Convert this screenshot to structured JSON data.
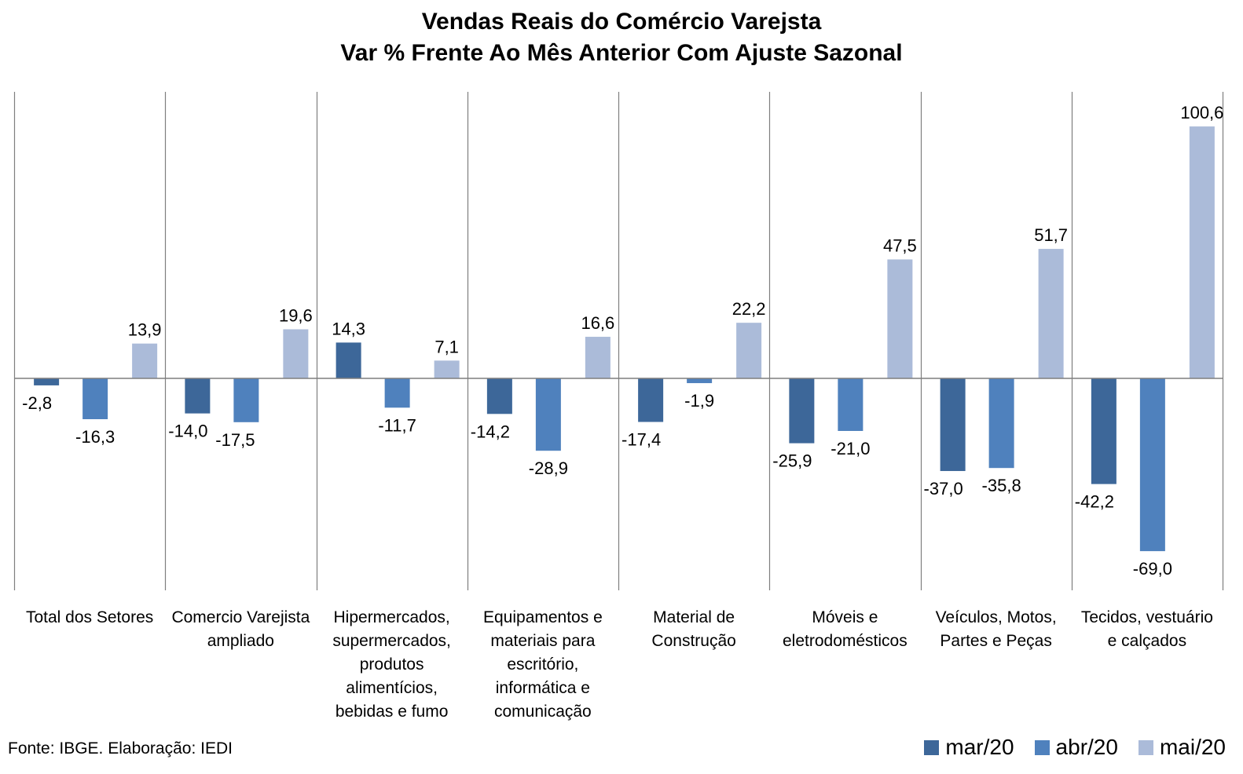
{
  "title_lines": [
    "Vendas Reais do Comércio Varejsta",
    "Var % Frente Ao Mês Anterior Com Ajuste Sazonal"
  ],
  "source": "Fonte: IBGE. Elaboração: IEDI",
  "chart_data": {
    "type": "bar",
    "title": "Vendas Reais do Comércio Varejsta - Var % Frente Ao Mês Anterior Com Ajuste Sazonal",
    "categories": [
      [
        "Total dos Setores"
      ],
      [
        "Comercio Varejista",
        "ampliado"
      ],
      [
        "Hipermercados,",
        "supermercados,",
        "produtos",
        "alimentícios,",
        "bebidas e fumo"
      ],
      [
        "Equipamentos e",
        "materiais para",
        "escritório,",
        "informática e",
        "comunicação"
      ],
      [
        "Material de",
        "Construção"
      ],
      [
        "Móveis e",
        "eletrodomésticos"
      ],
      [
        "Veículos, Motos,",
        "Partes e Peças"
      ],
      [
        "Tecidos, vestuário",
        "e calçados"
      ]
    ],
    "series": [
      {
        "name": "mar/20",
        "color": "#3d6799",
        "values": [
          -2.8,
          -14.0,
          14.3,
          -14.2,
          -17.4,
          -25.9,
          -37.0,
          -42.2
        ],
        "labels": [
          "-2,8",
          "-14,0",
          "14,3",
          "-14,2",
          "-17,4",
          "-25,9",
          "-37,0",
          "-42,2"
        ]
      },
      {
        "name": "abr/20",
        "color": "#4f81bd",
        "values": [
          -16.3,
          -17.5,
          -11.7,
          -28.9,
          -1.9,
          -21.0,
          -35.8,
          -69.0
        ],
        "labels": [
          "-16,3",
          "-17,5",
          "-11,7",
          "-28,9",
          "-1,9",
          "-21,0",
          "-35,8",
          "-69,0"
        ]
      },
      {
        "name": "mai/20",
        "color": "#abbbd9",
        "values": [
          13.9,
          19.6,
          7.1,
          16.6,
          22.2,
          47.5,
          51.7,
          100.6
        ],
        "labels": [
          "13,9",
          "19,6",
          "7,1",
          "16,6",
          "22,2",
          "47,5",
          "51,7",
          "100,6"
        ]
      }
    ],
    "ylim": [
      -83.5,
      115
    ],
    "grid": false,
    "legend_position": "bottom-right"
  }
}
